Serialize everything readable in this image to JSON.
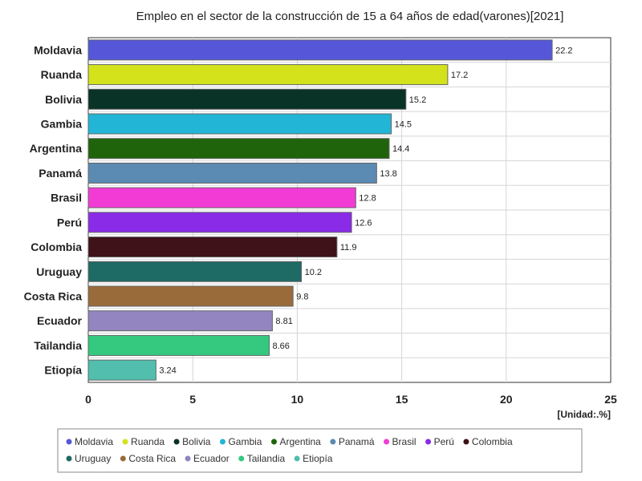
{
  "chart_data": {
    "type": "bar",
    "orientation": "horizontal",
    "title": "Empleo en el sector de la construcción de 15 a 64 años de edad(varones)[2021]",
    "unit_label": "[Unidad:.%]",
    "xlim": [
      0,
      25
    ],
    "xticks": [
      0,
      5,
      10,
      15,
      20,
      25
    ],
    "grid": true,
    "legend_position": "bottom",
    "categories": [
      "Moldavia",
      "Ruanda",
      "Bolivia",
      "Gambia",
      "Argentina",
      "Panamá",
      "Brasil",
      "Perú",
      "Colombia",
      "Uruguay",
      "Costa Rica",
      "Ecuador",
      "Tailandia",
      "Etiopía"
    ],
    "values": [
      22.2,
      17.2,
      15.2,
      14.5,
      14.4,
      13.8,
      12.8,
      12.6,
      11.9,
      10.2,
      9.8,
      8.81,
      8.66,
      3.24
    ],
    "value_labels": [
      "22.2",
      "17.2",
      "15.2",
      "14.5",
      "14.4",
      "13.8",
      "12.8",
      "12.6",
      "11.9",
      "10.2",
      "9.8",
      "8.81",
      "8.66",
      "3.24"
    ],
    "colors": [
      "#5657d8",
      "#d4e21c",
      "#0a3328",
      "#22b5d6",
      "#1f640a",
      "#5b8ab3",
      "#f23bd4",
      "#8a2be8",
      "#3e1218",
      "#1e6a64",
      "#9a6b3a",
      "#9285c0",
      "#34c97e",
      "#52bfae"
    ]
  }
}
